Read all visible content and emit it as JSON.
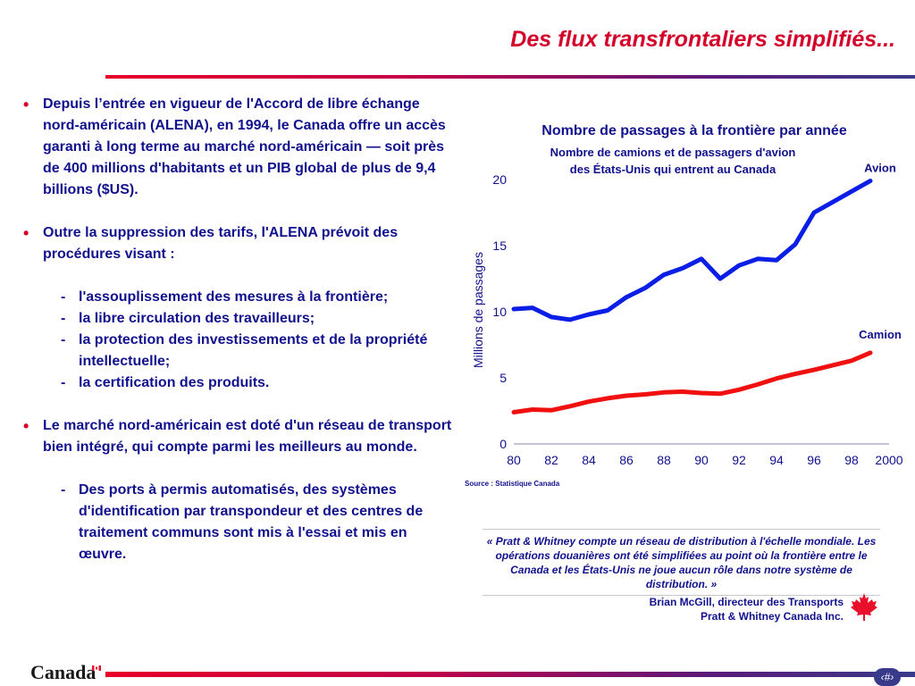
{
  "slide": {
    "title": "Des flux transfrontaliers simplifiés...",
    "page_number": "‹#›"
  },
  "bullets": [
    {
      "text": "Depuis l’entrée en vigueur de l'Accord de libre échange nord-américain (ALENA), en 1994, le Canada offre un accès garanti à long terme au marché nord-américain — soit près de 400 millions d'habitants et un PIB global de plus de 9,4 billions ($US)."
    },
    {
      "text": "Outre la suppression des tarifs, l'ALENA prévoit des procédures visant :",
      "subitems": [
        "l'assouplissement des mesures à la frontière;",
        "la libre circulation des travailleurs;",
        "la protection des investissements et de la propriété intellectuelle;",
        "la certification des produits."
      ]
    },
    {
      "text": "Le marché nord-américain est doté d'un réseau de transport bien intégré, qui compte parmi les meilleurs au monde.",
      "subitems": [
        "Des ports à permis automatisés, des systèmes d'identification par transpondeur et des centres de traitement communs sont mis à l'essai et mis en œuvre."
      ]
    }
  ],
  "chart_data": {
    "type": "line",
    "title": "Nombre de passages à la frontière par année",
    "subtitle_lines": [
      "Nombre de camions et de passagers d'avion",
      "des États-Unis qui entrent au Canada"
    ],
    "ylabel": "Millions de passages",
    "xlabel": "",
    "x": [
      1980,
      1981,
      1982,
      1983,
      1984,
      1985,
      1986,
      1987,
      1988,
      1989,
      1990,
      1991,
      1992,
      1993,
      1994,
      1995,
      1996,
      1997,
      1998,
      1999
    ],
    "x_tick_labels": [
      "80",
      "82",
      "84",
      "86",
      "88",
      "90",
      "92",
      "94",
      "96",
      "98",
      "2000"
    ],
    "x_tick_values": [
      1980,
      1982,
      1984,
      1986,
      1988,
      1990,
      1992,
      1994,
      1996,
      1998,
      2000
    ],
    "y_ticks": [
      0,
      5,
      10,
      15,
      20
    ],
    "xlim": [
      1980,
      2000
    ],
    "ylim": [
      0,
      20
    ],
    "grid": false,
    "series": [
      {
        "name": "Avion",
        "color": "#0a1ee6",
        "values": [
          10.2,
          10.3,
          9.6,
          9.4,
          9.8,
          10.1,
          11.1,
          11.8,
          12.8,
          13.3,
          14.0,
          12.5,
          13.5,
          14.0,
          13.9,
          15.1,
          17.5,
          18.3,
          19.1,
          19.9
        ]
      },
      {
        "name": "Camion",
        "color": "#f01010",
        "values": [
          2.4,
          2.6,
          2.55,
          2.85,
          3.2,
          3.45,
          3.65,
          3.75,
          3.9,
          3.95,
          3.85,
          3.8,
          4.1,
          4.5,
          4.95,
          5.3,
          5.6,
          5.95,
          6.3,
          6.9
        ]
      }
    ],
    "source": "Source : Statistique Canada"
  },
  "quote": {
    "text": "« Pratt & Whitney compte un réseau de distribution à l'échelle mondiale. Les opérations douanières ont été simplifiées au point où la frontière entre le Canada et les États-Unis ne joue aucun rôle dans notre système de distribution. »",
    "author_line1": "Brian McGill, directeur des Transports",
    "author_line2": "Pratt & Whitney Canada Inc."
  },
  "footer": {
    "wordmark": "Canada"
  },
  "colors": {
    "accent_red": "#d4002a",
    "text_navy": "#11118e",
    "axis": "#8888aa"
  }
}
